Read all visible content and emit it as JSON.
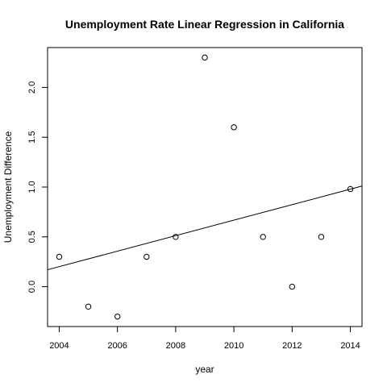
{
  "chart_data": {
    "type": "scatter",
    "title": "Unemployment Rate Linear Regression in California",
    "xlabel": "year",
    "ylabel": "Unemployment Difference",
    "xlim": [
      2003.6,
      2014.4
    ],
    "ylim": [
      -0.4,
      2.4
    ],
    "xticks": [
      "2004",
      "2006",
      "2008",
      "2010",
      "2012",
      "2014"
    ],
    "yticks": [
      "0.0",
      "0.5",
      "1.0",
      "1.5",
      "2.0"
    ],
    "grid": false,
    "points": [
      {
        "x": 2004,
        "y": 0.3
      },
      {
        "x": 2005,
        "y": -0.2
      },
      {
        "x": 2006,
        "y": -0.3
      },
      {
        "x": 2007,
        "y": 0.3
      },
      {
        "x": 2008,
        "y": 0.5
      },
      {
        "x": 2009,
        "y": 2.3
      },
      {
        "x": 2010,
        "y": 1.6
      },
      {
        "x": 2011,
        "y": 0.5
      },
      {
        "x": 2012,
        "y": 0.0
      },
      {
        "x": 2013,
        "y": 0.5
      },
      {
        "x": 2014,
        "y": 0.98
      }
    ],
    "regression_line": {
      "x": [
        2003.6,
        2014.4
      ],
      "y": [
        0.17,
        1.01
      ]
    }
  }
}
